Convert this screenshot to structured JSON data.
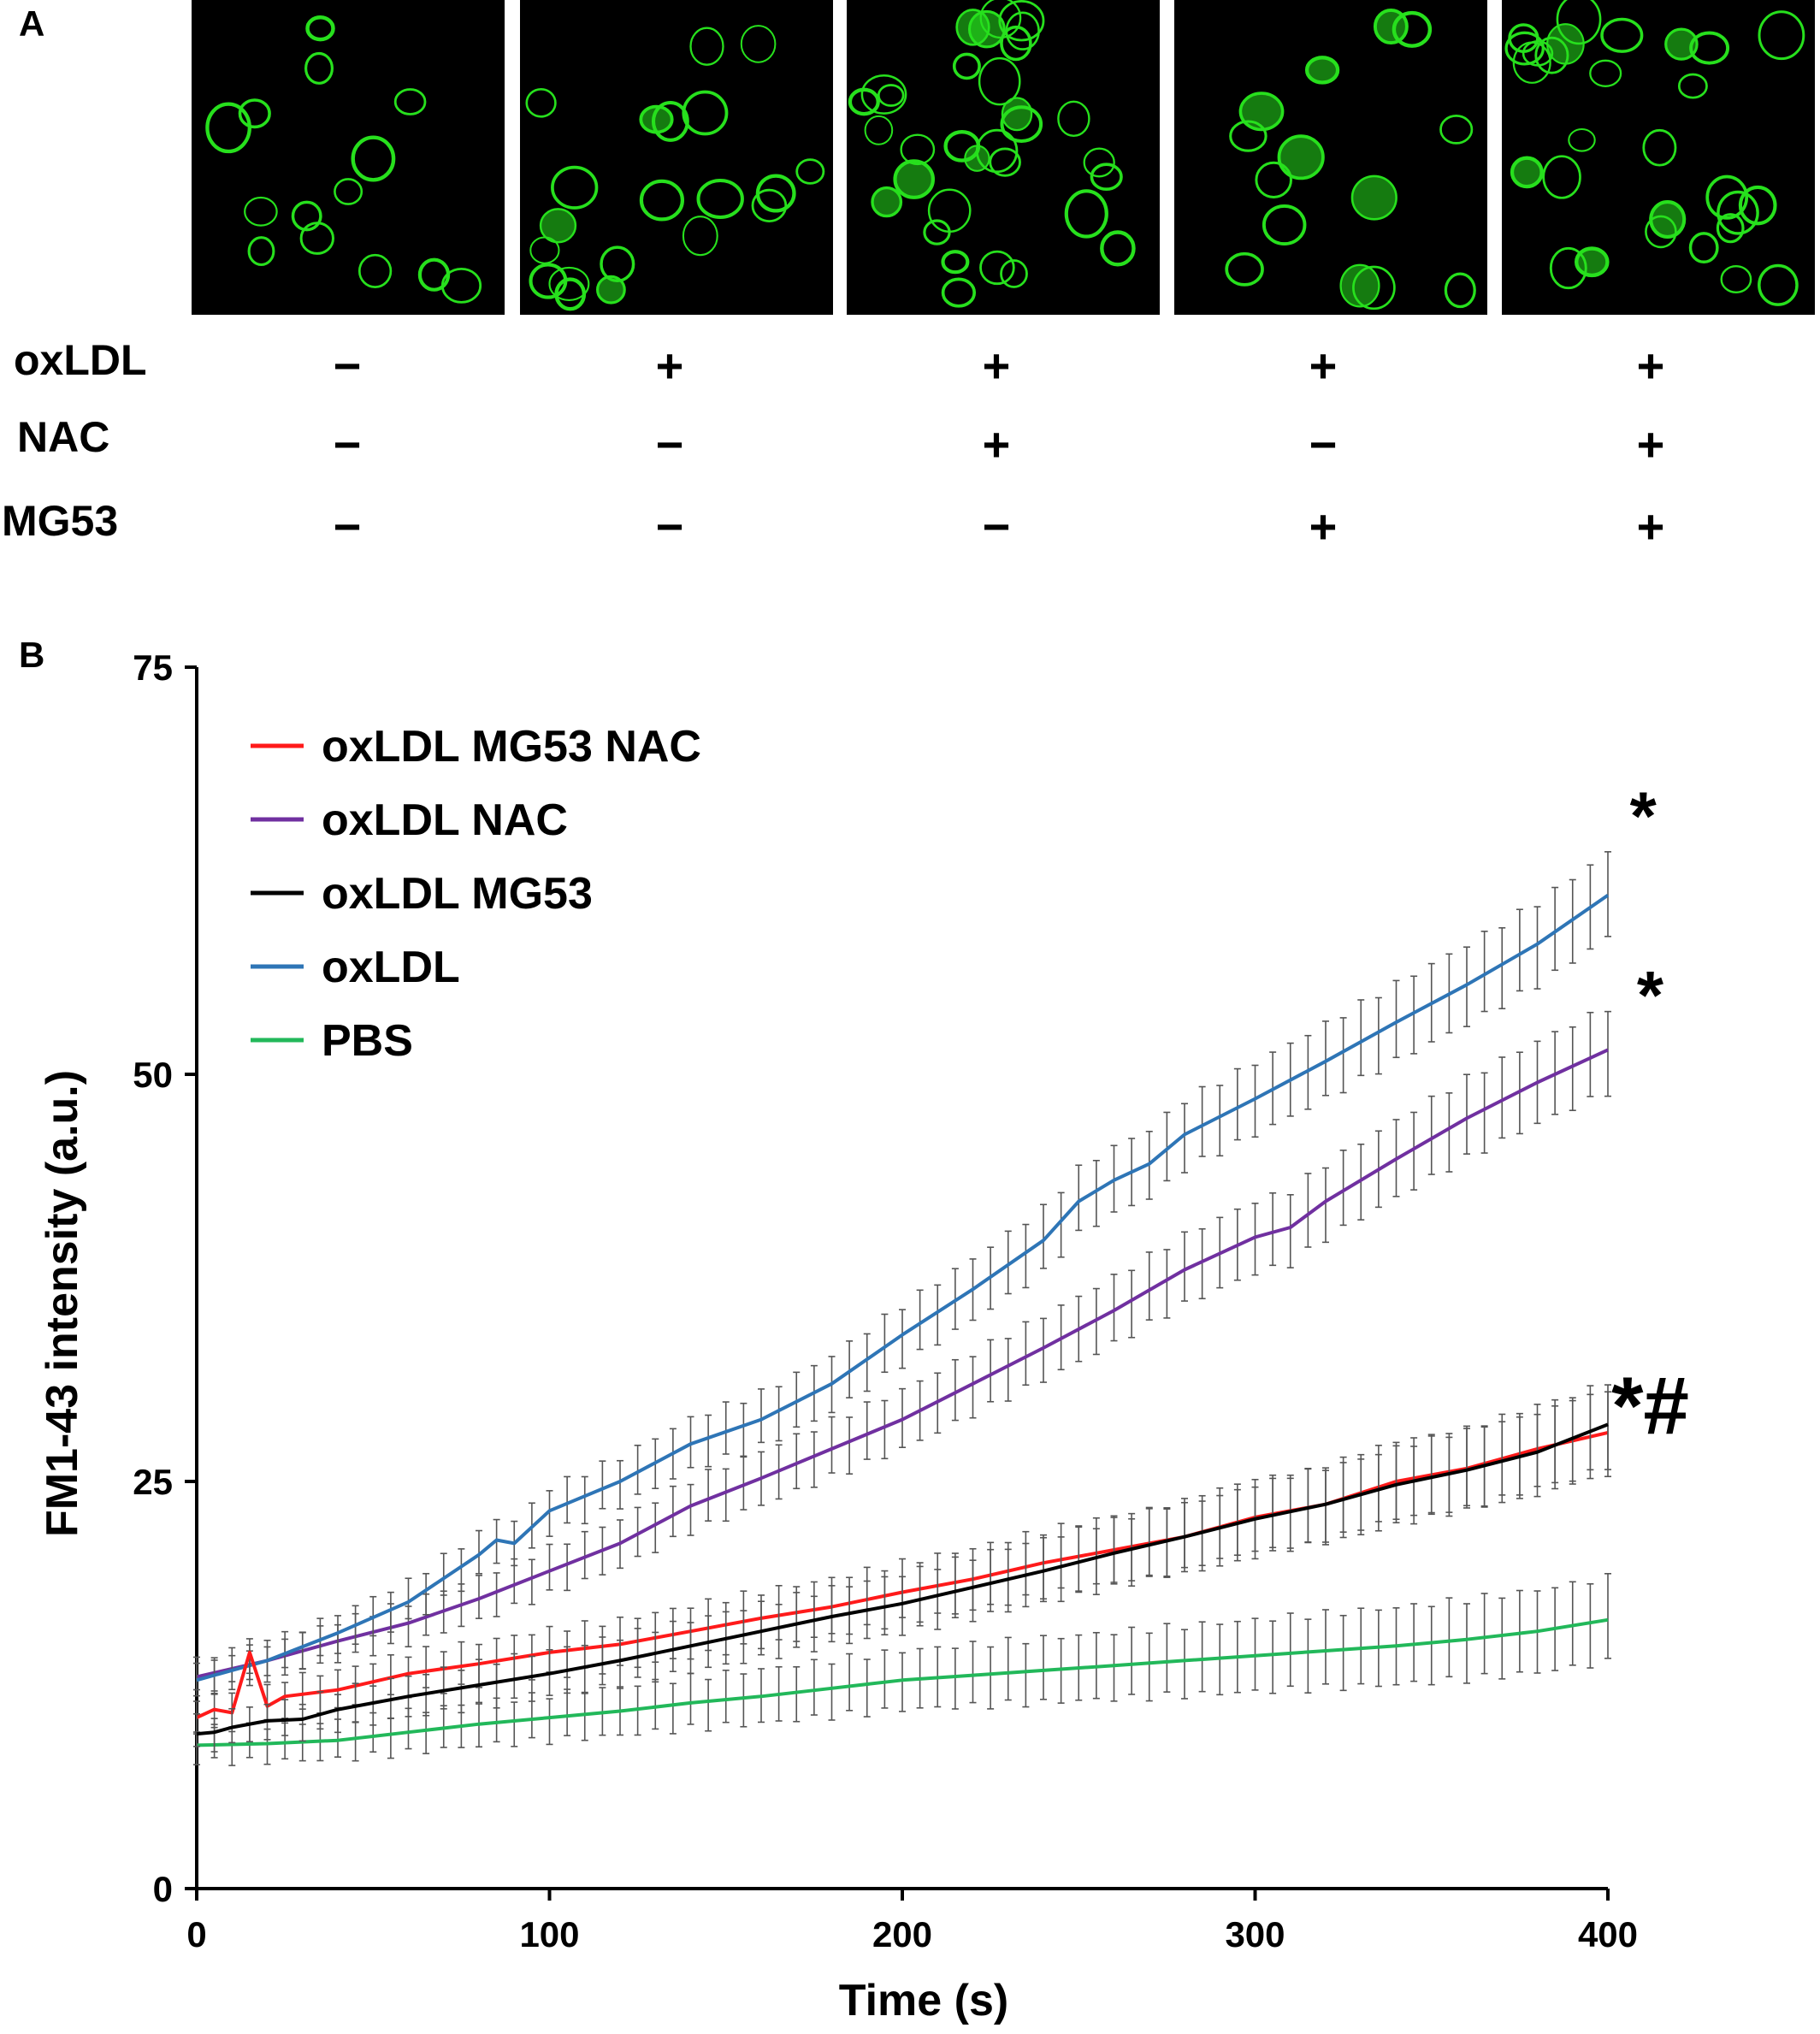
{
  "panel_a": {
    "label": "A",
    "conditions": [
      {
        "name": "oxLDL",
        "values": [
          "−",
          "+",
          "+",
          "+",
          "+"
        ]
      },
      {
        "name": "NAC",
        "values": [
          "−",
          "−",
          "+",
          "−",
          "+"
        ]
      },
      {
        "name": "MG53",
        "values": [
          "−",
          "−",
          "−",
          "+",
          "+"
        ]
      }
    ],
    "cell_color": "#27e01d"
  },
  "panel_b": {
    "label": "B"
  },
  "chart_data": {
    "type": "line",
    "xlabel": "Time (s)",
    "ylabel": "FM1-43 intensity (a.u.)",
    "xlim": [
      0,
      400
    ],
    "ylim": [
      0,
      75
    ],
    "xticks": [
      0,
      100,
      200,
      300,
      400
    ],
    "yticks": [
      0,
      25,
      50,
      75
    ],
    "grid": false,
    "legend_position": "top-left",
    "series": [
      {
        "name": "oxLDL MG53 NAC",
        "color": "#ff1a1a",
        "x": [
          0,
          5,
          10,
          15,
          20,
          25,
          40,
          60,
          80,
          100,
          120,
          140,
          160,
          180,
          200,
          220,
          240,
          260,
          280,
          300,
          320,
          340,
          360,
          380,
          400
        ],
        "y": [
          10.5,
          11,
          10.8,
          14.5,
          11.2,
          11.8,
          12.2,
          13.2,
          13.8,
          14.5,
          15,
          15.8,
          16.6,
          17.3,
          18.2,
          19,
          20,
          20.8,
          21.6,
          22.8,
          23.6,
          25,
          25.8,
          27,
          28
        ]
      },
      {
        "name": "oxLDL NAC",
        "color": "#7030a0",
        "x": [
          0,
          20,
          40,
          60,
          80,
          100,
          120,
          140,
          160,
          180,
          200,
          220,
          240,
          260,
          280,
          300,
          310,
          320,
          340,
          360,
          380,
          400
        ],
        "y": [
          13,
          14,
          15.2,
          16.3,
          17.8,
          19.5,
          21.2,
          23.5,
          25.2,
          27,
          28.8,
          31,
          33.2,
          35.5,
          38,
          40,
          40.6,
          42.2,
          44.8,
          47.3,
          49.5,
          51.5
        ]
      },
      {
        "name": "oxLDL MG53",
        "color": "#000000",
        "x": [
          0,
          5,
          10,
          20,
          30,
          40,
          60,
          80,
          100,
          120,
          140,
          160,
          180,
          200,
          220,
          240,
          260,
          280,
          300,
          320,
          340,
          360,
          380,
          400
        ],
        "y": [
          9.5,
          9.6,
          9.9,
          10.3,
          10.4,
          11,
          11.8,
          12.5,
          13.2,
          14,
          14.9,
          15.8,
          16.7,
          17.5,
          18.5,
          19.5,
          20.6,
          21.6,
          22.7,
          23.6,
          24.8,
          25.7,
          26.8,
          28.5
        ]
      },
      {
        "name": "oxLDL",
        "color": "#2e75b6",
        "x": [
          0,
          20,
          40,
          60,
          80,
          85,
          90,
          100,
          120,
          140,
          160,
          180,
          200,
          220,
          240,
          250,
          260,
          270,
          280,
          300,
          320,
          340,
          360,
          380,
          400
        ],
        "y": [
          12.8,
          14,
          15.7,
          17.6,
          20.5,
          21.4,
          21.2,
          23.2,
          25,
          27.3,
          28.8,
          31,
          34,
          36.8,
          39.8,
          42.2,
          43.5,
          44.5,
          46.3,
          48.5,
          50.8,
          53.2,
          55.5,
          58,
          61
        ]
      },
      {
        "name": "PBS",
        "color": "#22b85a",
        "x": [
          0,
          20,
          40,
          60,
          80,
          100,
          120,
          140,
          160,
          180,
          200,
          220,
          240,
          260,
          280,
          300,
          320,
          340,
          360,
          380,
          400
        ],
        "y": [
          8.8,
          8.9,
          9.1,
          9.6,
          10.1,
          10.5,
          10.9,
          11.4,
          11.8,
          12.3,
          12.8,
          13.1,
          13.4,
          13.7,
          14,
          14.3,
          14.6,
          14.9,
          15.3,
          15.8,
          16.5
        ]
      }
    ],
    "annotations": [
      {
        "text": "*",
        "x_data": 410,
        "y_data": 66
      },
      {
        "text": "*",
        "x_data": 412,
        "y_data": 55
      },
      {
        "text": "*#",
        "x_data": 412,
        "y_data": 29.5
      }
    ]
  }
}
